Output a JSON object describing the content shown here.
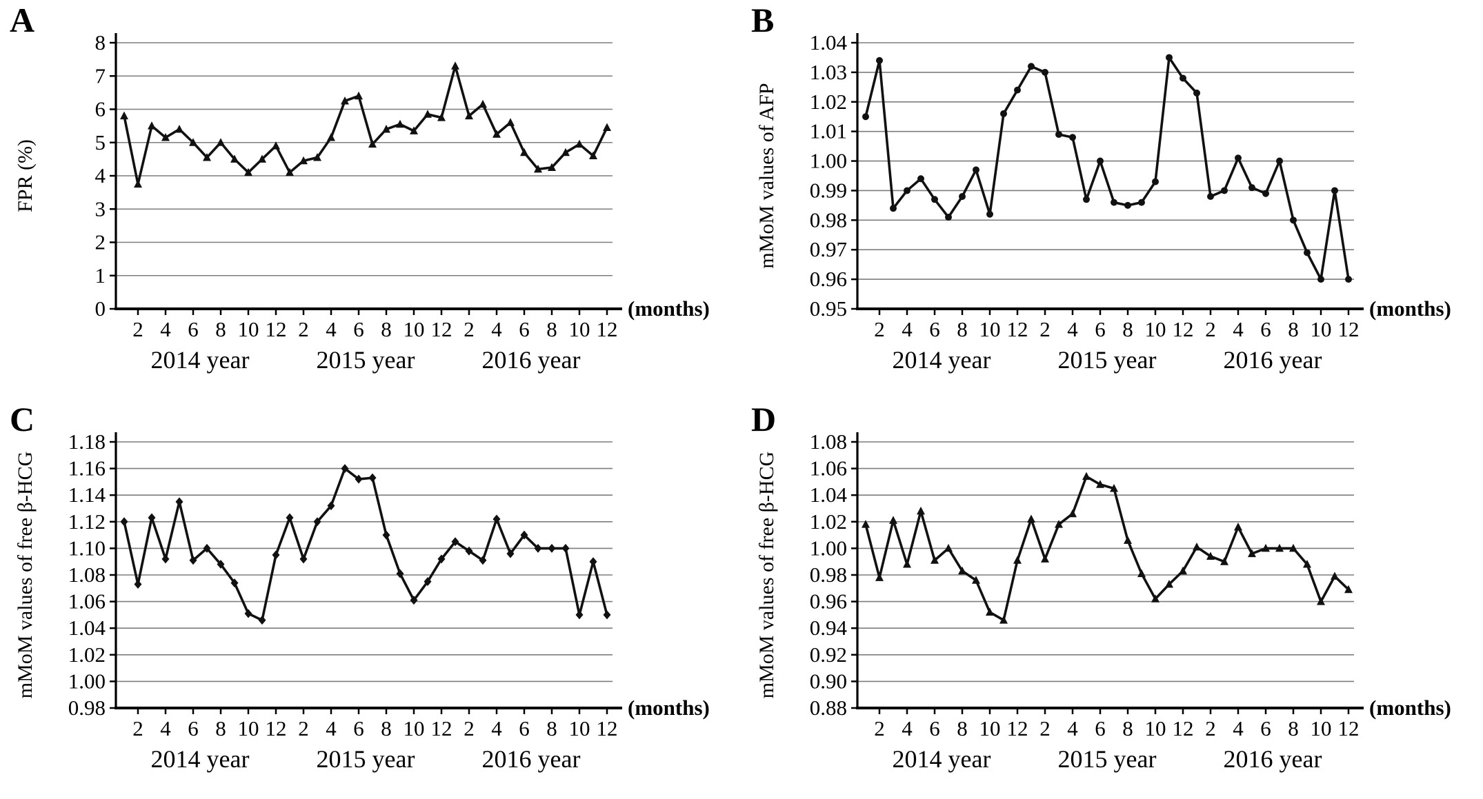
{
  "figure": {
    "months_label": "(months)",
    "x_tick_labels": [
      "2",
      "4",
      "6",
      "8",
      "10",
      "12"
    ],
    "year_labels": [
      "2014 year",
      "2015 year",
      "2016 year"
    ],
    "line_color": "#111111",
    "grid_color": "#7d7d7d",
    "axis_color": "#000000"
  },
  "chart_data": [
    {
      "type": "line",
      "panel_label": "A",
      "ylabel": "FPR (%)",
      "ylim": [
        0,
        8
      ],
      "ystep": 1,
      "ydecimals": 0,
      "marker": "triangle",
      "x_categories": "36 consecutive months: Jan 2014 - Dec 2016, ticks labeled 2,4,6,8,10,12 per year",
      "values": [
        5.8,
        3.75,
        5.5,
        5.15,
        5.4,
        5.0,
        4.55,
        5.0,
        4.5,
        4.1,
        4.5,
        4.9,
        4.1,
        4.45,
        4.55,
        5.15,
        6.25,
        6.4,
        4.95,
        5.4,
        5.55,
        5.35,
        5.85,
        5.75,
        7.3,
        5.8,
        6.15,
        5.25,
        5.6,
        4.7,
        4.2,
        4.25,
        4.7,
        4.95,
        4.6,
        5.45
      ]
    },
    {
      "type": "line",
      "panel_label": "B",
      "ylabel": "mMoM values of AFP",
      "ylim": [
        0.95,
        1.04
      ],
      "ystep": 0.01,
      "ydecimals": 2,
      "marker": "circle",
      "x_categories": "36 consecutive months: Jan 2014 - Dec 2016, ticks labeled 2,4,6,8,10,12 per year",
      "values": [
        1.015,
        1.034,
        0.984,
        0.99,
        0.994,
        0.987,
        0.981,
        0.988,
        0.997,
        0.982,
        1.016,
        1.024,
        1.032,
        1.03,
        1.009,
        1.008,
        0.987,
        1.0,
        0.986,
        0.985,
        0.986,
        0.993,
        1.035,
        1.028,
        1.023,
        0.988,
        0.99,
        1.001,
        0.991,
        0.989,
        1.0,
        0.98,
        0.969,
        0.96,
        0.99,
        0.96
      ]
    },
    {
      "type": "line",
      "panel_label": "C",
      "ylabel": "mMoM values of free β-HCG",
      "ylim": [
        0.98,
        1.18
      ],
      "ystep": 0.02,
      "ydecimals": 2,
      "marker": "diamond",
      "x_categories": "36 consecutive months: Jan 2014 - Dec 2016, ticks labeled 2,4,6,8,10,12 per year",
      "values": [
        1.12,
        1.073,
        1.123,
        1.092,
        1.135,
        1.091,
        1.1,
        1.088,
        1.074,
        1.051,
        1.046,
        1.095,
        1.123,
        1.092,
        1.12,
        1.132,
        1.16,
        1.152,
        1.153,
        1.11,
        1.081,
        1.061,
        1.075,
        1.092,
        1.105,
        1.098,
        1.091,
        1.122,
        1.096,
        1.11,
        1.1,
        1.1,
        1.1,
        1.05,
        1.09,
        1.05
      ]
    },
    {
      "type": "line",
      "panel_label": "D",
      "ylabel": "mMoM values of free β-HCG",
      "ylim": [
        0.88,
        1.08
      ],
      "ystep": 0.02,
      "ydecimals": 2,
      "marker": "triangle",
      "x_categories": "36 consecutive months: Jan 2014 - Dec 2016, ticks labeled 2,4,6,8,10,12 per year",
      "values": [
        1.018,
        0.978,
        1.021,
        0.988,
        1.028,
        0.991,
        1.0,
        0.983,
        0.976,
        0.952,
        0.946,
        0.991,
        1.022,
        0.992,
        1.018,
        1.026,
        1.054,
        1.048,
        1.045,
        1.006,
        0.981,
        0.962,
        0.973,
        0.983,
        1.001,
        0.994,
        0.99,
        1.016,
        0.996,
        1.0,
        1.0,
        1.0,
        0.988,
        0.96,
        0.979,
        0.969
      ]
    }
  ]
}
